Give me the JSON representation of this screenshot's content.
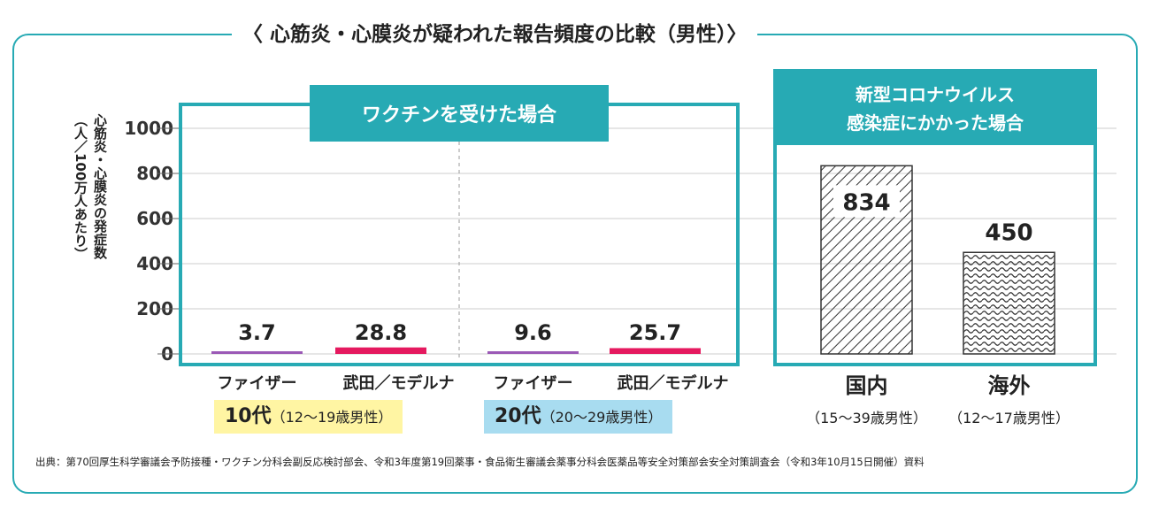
{
  "title": "〈 心筋炎・心膜炎が疑われた報告頻度の比較（男性）〉",
  "y_axis_label_line1": "心筋炎・心膜炎の発症数",
  "y_axis_label_line2": "（人／100万人あたり）",
  "vaccine_panel_title": "ワクチンを受けた場合",
  "covid_panel_title_line1": "新型コロナウイルス",
  "covid_panel_title_line2": "感染症にかかった場合",
  "age_groups": [
    {
      "label": "10代",
      "sub": "（12～19歳男性）"
    },
    {
      "label": "20代",
      "sub": "（20～29歳男性）"
    }
  ],
  "source": "出典：第70回厚生科学審議会予防接種・ワクチン分科会副反応検討部会、令和3年度第19回薬事・食品衛生審議会薬事分科会医薬品等安全対策部会安全対策調査会（令和3年10月15日開催）資料",
  "colors": {
    "teal": "#27aab4",
    "pfizer": "#9b59b6",
    "moderna": "#e5195f",
    "yellow": "#fff5a3",
    "blue": "#a8dcf0"
  },
  "chart_data": [
    {
      "type": "bar",
      "title": "ワクチンを受けた場合",
      "ylabel": "心筋炎・心膜炎の発症数（人／100万人あたり）",
      "ylim": [
        0,
        1000
      ],
      "yticks": [
        0,
        200,
        400,
        600,
        800,
        1000
      ],
      "groups": [
        "10代",
        "20代"
      ],
      "categories": [
        "ファイザー",
        "武田／モデルナ",
        "ファイザー",
        "武田／モデルナ"
      ],
      "values": [
        3.7,
        28.8,
        9.6,
        25.7
      ],
      "value_labels": [
        "3.7",
        "28.8",
        "9.6",
        "25.7"
      ]
    },
    {
      "type": "bar",
      "title": "新型コロナウイルス感染症にかかった場合",
      "ylim": [
        0,
        1000
      ],
      "categories": [
        "国内",
        "海外"
      ],
      "category_subs": [
        "（15～39歳男性）",
        "（12～17歳男性）"
      ],
      "values": [
        834,
        450
      ],
      "value_labels": [
        "834",
        "450"
      ]
    }
  ]
}
